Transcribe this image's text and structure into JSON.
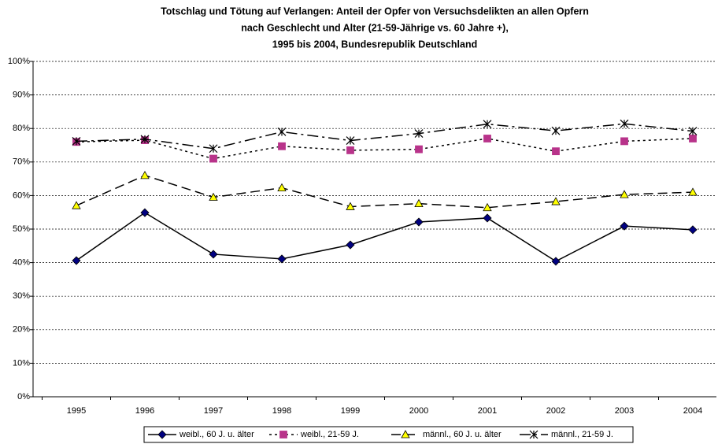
{
  "chart_data": {
    "type": "line",
    "title": [
      "Totschlag und Tötung auf Verlangen: Anteil der Opfer von Versuchsdelikten an allen Opfern",
      "nach Geschlecht und Alter (21-59-Jährige vs. 60 Jahre +),",
      "1995 bis 2004,  Bundesrepublik Deutschland"
    ],
    "categories": [
      "1995",
      "1996",
      "1997",
      "1998",
      "1999",
      "2000",
      "2001",
      "2002",
      "2003",
      "2004"
    ],
    "series": [
      {
        "name": "weibl., 60 J. u. älter",
        "color": "#000080",
        "values": [
          40.6,
          54.9,
          42.5,
          41.1,
          45.3,
          52.1,
          53.3,
          40.4,
          50.9,
          49.8
        ]
      },
      {
        "name": "weibl., 21-59 J.",
        "color": "#b8338a",
        "values": [
          76,
          76.5,
          71,
          74.7,
          73.5,
          73.8,
          77,
          73.2,
          76.2,
          77
        ]
      },
      {
        "name": "männl., 60 J. u. älter",
        "color": "#ffff00",
        "values": [
          57,
          66,
          59.5,
          62.3,
          56.7,
          57.6,
          56.4,
          58.2,
          60.3,
          61
        ]
      },
      {
        "name": "männl., 21-59 J.",
        "color": "#000000",
        "values": [
          76.2,
          76.8,
          74,
          79,
          76.4,
          78.5,
          81.3,
          79.3,
          81.4,
          79.2
        ]
      }
    ],
    "ylim": [
      0,
      100
    ],
    "yticks": [
      {
        "value": 0,
        "label": "0%"
      },
      {
        "value": 10,
        "label": "10%"
      },
      {
        "value": 20,
        "label": "20%"
      },
      {
        "value": 30,
        "label": "30%"
      },
      {
        "value": 40,
        "label": "40%"
      },
      {
        "value": 50,
        "label": "50%"
      },
      {
        "value": 60,
        "label": "60%"
      },
      {
        "value": 70,
        "label": "70%"
      },
      {
        "value": 80,
        "label": "80%"
      },
      {
        "value": 90,
        "label": "90%"
      },
      {
        "value": 100,
        "label": "100%"
      }
    ],
    "grid": true
  }
}
